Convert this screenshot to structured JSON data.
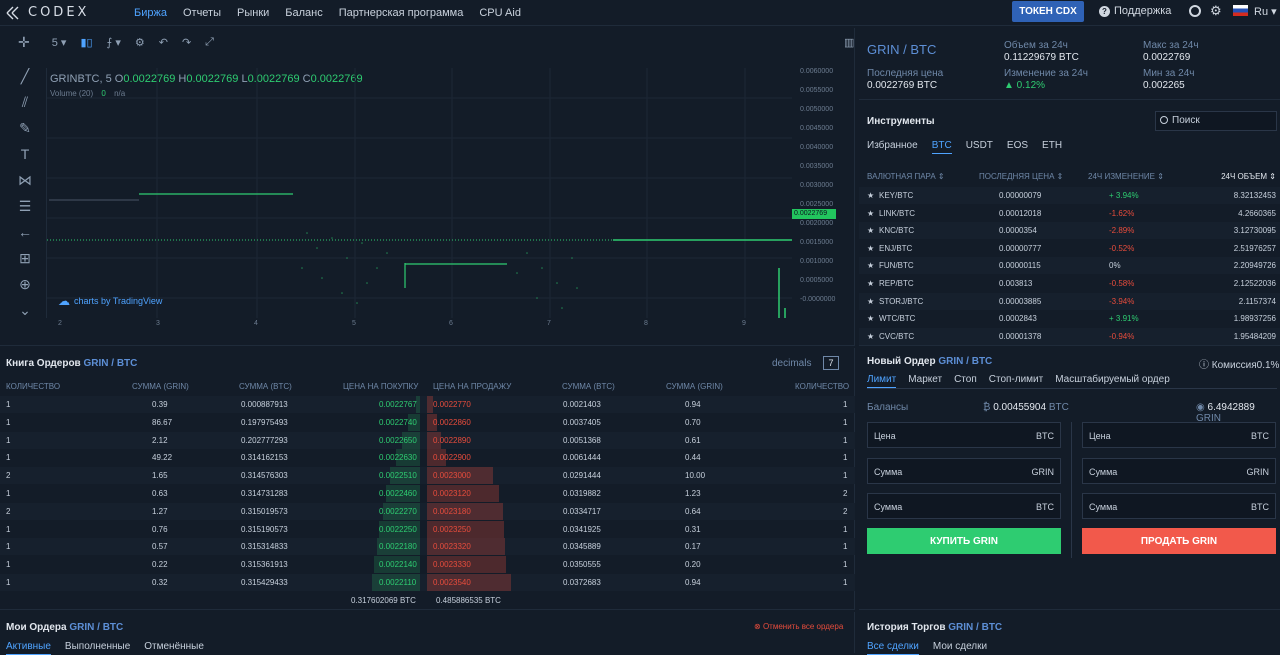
{
  "nav": {
    "logo_text": "CODEX",
    "links": [
      "Биржа",
      "Отчеты",
      "Рынки",
      "Баланс",
      "Партнерская программа",
      "CPU Aid"
    ],
    "token_button": "ТОКЕН CDX",
    "support": "Поддержка",
    "language": "Ru"
  },
  "chart": {
    "interval": "5",
    "symbol": "GRINBTC, 5",
    "o_label": "O",
    "o": "0.0022769",
    "h_label": "H",
    "h": "0.0022769",
    "l_label": "L",
    "l": "0.0022769",
    "c_label": "C",
    "c": "0.0022769",
    "volume_label": "Volume (20)",
    "volume_value": "0",
    "volume_na": "n/a",
    "last_price_flag": "0.0022769",
    "tv_brand": "charts by TradingView",
    "yticks": [
      "0.0060000",
      "0.0055000",
      "0.0050000",
      "0.0045000",
      "0.0040000",
      "0.0035000",
      "0.0030000",
      "0.0025000",
      "0.0020000",
      "0.0015000",
      "0.0010000",
      "0.0005000",
      "-0.0000000"
    ],
    "xticks": [
      "2",
      "3",
      "4",
      "5",
      "6",
      "7",
      "8",
      "9"
    ]
  },
  "info": {
    "pair": "GRIN / BTC",
    "last_price_label": "Последняя цена",
    "last_price": "0.0022769 BTC",
    "volume_label": "Объем за 24ч",
    "volume": "0.11229679 BTC",
    "change_label": "Изменение за 24ч",
    "change": "▲ 0.12%",
    "max_label": "Макс за 24ч",
    "max": "0.0022769",
    "min_label": "Мин за 24ч",
    "min": "0.002265"
  },
  "instruments": {
    "title": "Инструменты",
    "search_placeholder": "Поиск",
    "tabs": [
      "Избранное",
      "BTC",
      "USDT",
      "EOS",
      "ETH"
    ],
    "headers": [
      "ВАЛЮТНАЯ ПАРА ⇕",
      "ПОСЛЕДНЯЯ ЦЕНА ⇕",
      "24Ч ИЗМЕНЕНИЕ ⇕",
      "24Ч ОБЪЕМ ⇕"
    ],
    "rows": [
      {
        "pair": "KEY/BTC",
        "price": "0.00000079",
        "change": "+ 3.94%",
        "dir": "up",
        "vol": "8.32132453"
      },
      {
        "pair": "LINK/BTC",
        "price": "0.00012018",
        "change": "-1.62%",
        "dir": "down",
        "vol": "4.2660365"
      },
      {
        "pair": "KNC/BTC",
        "price": "0.0000354",
        "change": "-2.89%",
        "dir": "down",
        "vol": "3.12730095"
      },
      {
        "pair": "ENJ/BTC",
        "price": "0.00000777",
        "change": "-0.52%",
        "dir": "down",
        "vol": "2.51976257"
      },
      {
        "pair": "FUN/BTC",
        "price": "0.00000115",
        "change": "0%",
        "dir": "flat",
        "vol": "2.20949726"
      },
      {
        "pair": "REP/BTC",
        "price": "0.003813",
        "change": "-0.58%",
        "dir": "down",
        "vol": "2.12522036"
      },
      {
        "pair": "STORJ/BTC",
        "price": "0.00003885",
        "change": "-3.94%",
        "dir": "down",
        "vol": "2.1157374"
      },
      {
        "pair": "WTC/BTC",
        "price": "0.0002843",
        "change": "+ 3.91%",
        "dir": "up",
        "vol": "1.98937256"
      },
      {
        "pair": "CVC/BTC",
        "price": "0.00001378",
        "change": "-0.94%",
        "dir": "down",
        "vol": "1.95484209"
      }
    ]
  },
  "orderbook": {
    "title": "Книга Ордеров",
    "pair": "GRIN / BTC",
    "decimals_label": "decimals",
    "decimals_value": "7",
    "headers": [
      "КОЛИЧЕСТВО",
      "СУММА (GRIN)",
      "СУММА (BTC)",
      "ЦЕНА НА ПОКУПКУ",
      "ЦЕНА НА ПРОДАЖУ",
      "СУММА (BTC)",
      "СУММА (GRIN)",
      "КОЛИЧЕСТВО"
    ],
    "rows": [
      {
        "bq": "1",
        "bgrin": "0.39",
        "bbtc": "0.000887913",
        "bid": "0.0022767",
        "ask": "0.0022770",
        "abtc": "0.0021403",
        "agrin": "0.94",
        "aq": "1",
        "bd": 0.03,
        "ad": 0.05
      },
      {
        "bq": "1",
        "bgrin": "86.67",
        "bbtc": "0.197975493",
        "bid": "0.0022740",
        "ask": "0.0022860",
        "abtc": "0.0037405",
        "agrin": "0.70",
        "aq": "1",
        "bd": 0.1,
        "ad": 0.08
      },
      {
        "bq": "1",
        "bgrin": "2.12",
        "bbtc": "0.202777293",
        "bid": "0.0022650",
        "ask": "0.0022890",
        "abtc": "0.0051368",
        "agrin": "0.61",
        "aq": "1",
        "bd": 0.15,
        "ad": 0.12
      },
      {
        "bq": "1",
        "bgrin": "49.22",
        "bbtc": "0.314162153",
        "bid": "0.0022630",
        "ask": "0.0022900",
        "abtc": "0.0061444",
        "agrin": "0.44",
        "aq": "1",
        "bd": 0.2,
        "ad": 0.16
      },
      {
        "bq": "2",
        "bgrin": "1.65",
        "bbtc": "0.314576303",
        "bid": "0.0022510",
        "ask": "0.0023000",
        "abtc": "0.0291444",
        "agrin": "10.00",
        "aq": "1",
        "bd": 0.25,
        "ad": 0.55
      },
      {
        "bq": "1",
        "bgrin": "0.63",
        "bbtc": "0.314731283",
        "bid": "0.0022460",
        "ask": "0.0023120",
        "abtc": "0.0319882",
        "agrin": "1.23",
        "aq": "2",
        "bd": 0.28,
        "ad": 0.6
      },
      {
        "bq": "2",
        "bgrin": "1.27",
        "bbtc": "0.315019573",
        "bid": "0.0022270",
        "ask": "0.0023180",
        "abtc": "0.0334717",
        "agrin": "0.64",
        "aq": "2",
        "bd": 0.31,
        "ad": 0.63
      },
      {
        "bq": "1",
        "bgrin": "0.76",
        "bbtc": "0.315190573",
        "bid": "0.0022250",
        "ask": "0.0023250",
        "abtc": "0.0341925",
        "agrin": "0.31",
        "aq": "1",
        "bd": 0.34,
        "ad": 0.64
      },
      {
        "bq": "1",
        "bgrin": "0.57",
        "bbtc": "0.315314833",
        "bid": "0.0022180",
        "ask": "0.0023320",
        "abtc": "0.0345889",
        "agrin": "0.17",
        "aq": "1",
        "bd": 0.36,
        "ad": 0.65
      },
      {
        "bq": "1",
        "bgrin": "0.22",
        "bbtc": "0.315361913",
        "bid": "0.0022140",
        "ask": "0.0023330",
        "abtc": "0.0350555",
        "agrin": "0.20",
        "aq": "1",
        "bd": 0.38,
        "ad": 0.66
      },
      {
        "bq": "1",
        "bgrin": "0.32",
        "bbtc": "0.315429433",
        "bid": "0.0022110",
        "ask": "0.0023540",
        "abtc": "0.0372683",
        "agrin": "0.94",
        "aq": "1",
        "bd": 0.4,
        "ad": 0.7
      }
    ],
    "total_bid": "0.317602069 BTC",
    "total_ask": "0.485886535 BTC"
  },
  "my_orders": {
    "title": "Мои Ордера",
    "pair": "GRIN / BTC",
    "cancel_all": "Отменить все ордера",
    "tabs": [
      "Активные",
      "Выполненные",
      "Отменённые"
    ]
  },
  "new_order": {
    "title": "Новый Ордер",
    "pair": "GRIN / BTC",
    "commission": "Комиссия0.1%",
    "tabs": [
      "Лимит",
      "Маркет",
      "Стоп",
      "Стоп-лимит",
      "Масштабируемый ордер"
    ],
    "balances_label": "Балансы",
    "btc_balance": "0.00455904",
    "btc_unit": "BTC",
    "grin_balance": "6.4942889",
    "grin_unit": "GRIN",
    "price_label": "Цена",
    "amount_label": "Сумма",
    "btc": "BTC",
    "grin": "GRIN",
    "buy": "КУПИТЬ GRIN",
    "sell": "ПРОДАТЬ GRIN"
  },
  "trade_history": {
    "title": "История Торгов",
    "pair": "GRIN / BTC",
    "tabs": [
      "Все сделки",
      "Мои сделки"
    ]
  },
  "colors": {
    "accent": "#4fa3ff",
    "buy": "#2ecc71",
    "sell": "#e74c3c",
    "bg": "#131c28"
  }
}
